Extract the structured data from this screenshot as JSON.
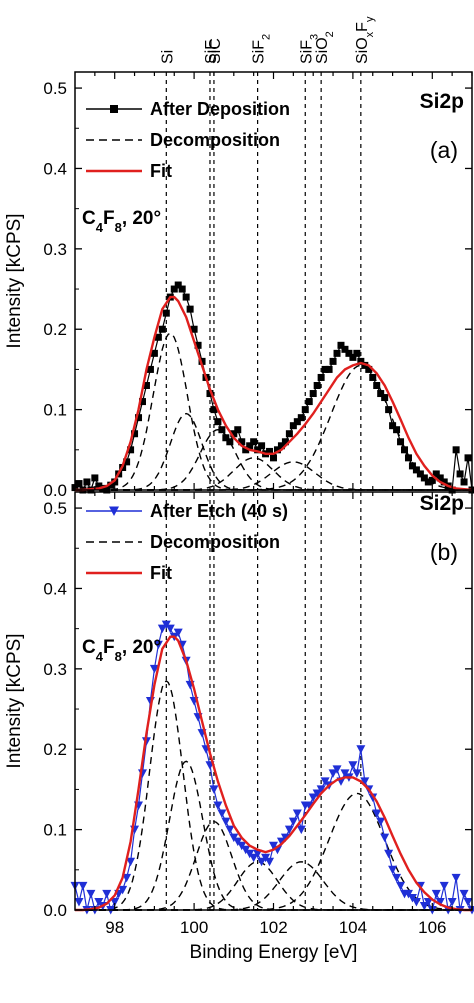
{
  "chart_data": [
    {
      "type": "line",
      "panel_label": "(a)",
      "region": "Si2p",
      "condition": {
        "base": "C",
        "s1": "4",
        "mid": "F",
        "s2": "8",
        "tail": ", 20°"
      },
      "xlabel": "",
      "ylabel": "Intensity [kCPS]",
      "xlim": [
        97,
        107
      ],
      "ylim": [
        0,
        0.52
      ],
      "yticks": [
        "0.0",
        "0.1",
        "0.2",
        "0.3",
        "0.4",
        "0.5"
      ],
      "legend": {
        "data": "After Deposition",
        "decomp": "Decomposition",
        "fit": "Fit"
      },
      "series": {
        "data": {
          "name": "After Deposition",
          "color": "#000000",
          "marker": "square",
          "x": [
            97.0,
            97.1,
            97.2,
            97.3,
            97.4,
            97.5,
            97.6,
            97.7,
            97.8,
            97.9,
            98.0,
            98.1,
            98.2,
            98.3,
            98.4,
            98.5,
            98.6,
            98.7,
            98.8,
            98.9,
            99.0,
            99.1,
            99.2,
            99.3,
            99.4,
            99.5,
            99.6,
            99.7,
            99.8,
            99.9,
            100.0,
            100.1,
            100.2,
            100.3,
            100.4,
            100.5,
            100.6,
            100.7,
            100.8,
            100.9,
            101.0,
            101.1,
            101.2,
            101.3,
            101.4,
            101.5,
            101.6,
            101.7,
            101.8,
            101.9,
            102.0,
            102.1,
            102.2,
            102.3,
            102.4,
            102.5,
            102.6,
            102.7,
            102.8,
            102.9,
            103.0,
            103.1,
            103.2,
            103.3,
            103.4,
            103.5,
            103.6,
            103.7,
            103.8,
            103.9,
            104.0,
            104.1,
            104.2,
            104.3,
            104.4,
            104.5,
            104.6,
            104.7,
            104.8,
            104.9,
            105.0,
            105.1,
            105.2,
            105.3,
            105.4,
            105.5,
            105.6,
            105.7,
            105.8,
            105.9,
            106.0,
            106.1,
            106.2,
            106.3,
            106.4,
            106.5,
            106.6,
            106.7,
            106.8,
            106.9,
            107.0
          ],
          "y": [
            0.003,
            0.008,
            0.0,
            0.01,
            0.0,
            0.015,
            0.005,
            0.002,
            0.0,
            0.006,
            0.01,
            0.02,
            0.028,
            0.035,
            0.05,
            0.07,
            0.09,
            0.11,
            0.13,
            0.15,
            0.17,
            0.19,
            0.2,
            0.22,
            0.24,
            0.25,
            0.255,
            0.25,
            0.24,
            0.225,
            0.2,
            0.18,
            0.16,
            0.14,
            0.12,
            0.1,
            0.085,
            0.075,
            0.065,
            0.06,
            0.07,
            0.075,
            0.06,
            0.05,
            0.055,
            0.06,
            0.05,
            0.055,
            0.045,
            0.048,
            0.04,
            0.05,
            0.055,
            0.06,
            0.07,
            0.08,
            0.085,
            0.09,
            0.1,
            0.11,
            0.12,
            0.13,
            0.14,
            0.15,
            0.15,
            0.16,
            0.17,
            0.18,
            0.175,
            0.17,
            0.165,
            0.17,
            0.16,
            0.155,
            0.15,
            0.14,
            0.13,
            0.12,
            0.115,
            0.1,
            0.08,
            0.075,
            0.06,
            0.05,
            0.04,
            0.03,
            0.025,
            0.02,
            0.015,
            0.01,
            0.012,
            0.02,
            0.015,
            0.01,
            0.005,
            0.0,
            0.05,
            0.02,
            0.01,
            0.04,
            0.0
          ]
        },
        "fit": {
          "name": "Fit",
          "color": "#e0201e",
          "x": [
            97.0,
            97.2,
            97.4,
            97.6,
            97.8,
            98.0,
            98.2,
            98.4,
            98.6,
            98.8,
            99.0,
            99.2,
            99.4,
            99.5,
            99.6,
            99.8,
            100.0,
            100.2,
            100.4,
            100.6,
            100.8,
            101.0,
            101.2,
            101.4,
            101.6,
            101.8,
            102.0,
            102.2,
            102.4,
            102.6,
            102.8,
            103.0,
            103.2,
            103.4,
            103.6,
            103.8,
            104.0,
            104.2,
            104.4,
            104.6,
            104.8,
            105.0,
            105.2,
            105.4,
            105.6,
            105.8,
            106.0,
            106.2,
            106.4,
            106.6,
            106.8,
            107.0
          ],
          "y": [
            0.0,
            0.0,
            0.001,
            0.002,
            0.005,
            0.012,
            0.03,
            0.06,
            0.1,
            0.15,
            0.19,
            0.225,
            0.24,
            0.24,
            0.235,
            0.215,
            0.185,
            0.155,
            0.125,
            0.1,
            0.08,
            0.065,
            0.055,
            0.05,
            0.048,
            0.045,
            0.045,
            0.05,
            0.06,
            0.07,
            0.082,
            0.095,
            0.11,
            0.125,
            0.14,
            0.15,
            0.155,
            0.158,
            0.155,
            0.145,
            0.13,
            0.11,
            0.088,
            0.065,
            0.045,
            0.03,
            0.018,
            0.01,
            0.005,
            0.002,
            0.001,
            0.0
          ]
        },
        "decomposition": [
          {
            "center": 99.4,
            "amp": 0.195,
            "sigma": 0.43
          },
          {
            "center": 99.8,
            "amp": 0.095,
            "sigma": 0.4
          },
          {
            "center": 100.6,
            "amp": 0.075,
            "sigma": 0.45
          },
          {
            "center": 101.5,
            "amp": 0.04,
            "sigma": 0.5
          },
          {
            "center": 102.5,
            "amp": 0.035,
            "sigma": 0.55
          },
          {
            "center": 104.2,
            "amp": 0.155,
            "sigma": 0.75
          }
        ]
      }
    },
    {
      "type": "line",
      "panel_label": "(b)",
      "region": "Si2p",
      "condition": {
        "base": "C",
        "s1": "4",
        "mid": "F",
        "s2": "8",
        "tail": ", 20°"
      },
      "xlabel": "Binding Energy [eV]",
      "ylabel": "Intensity [kCPS]",
      "xlim": [
        97,
        107
      ],
      "ylim": [
        0,
        0.52
      ],
      "yticks": [
        "0.0",
        "0.1",
        "0.2",
        "0.3",
        "0.4",
        "0.5"
      ],
      "xticks": [
        "98",
        "100",
        "102",
        "104",
        "106"
      ],
      "xtick_values": [
        98,
        100,
        102,
        104,
        106
      ],
      "legend": {
        "data": "After Etch (40 s)",
        "decomp": "Decomposition",
        "fit": "Fit"
      },
      "series": {
        "data": {
          "name": "After Etch (40 s)",
          "color": "#1f2fd6",
          "marker": "triangle-down",
          "x": [
            97.0,
            97.1,
            97.2,
            97.3,
            97.4,
            97.5,
            97.6,
            97.7,
            97.8,
            97.9,
            98.0,
            98.1,
            98.2,
            98.3,
            98.4,
            98.5,
            98.6,
            98.7,
            98.8,
            98.9,
            99.0,
            99.1,
            99.2,
            99.3,
            99.4,
            99.5,
            99.6,
            99.7,
            99.8,
            99.9,
            100.0,
            100.1,
            100.2,
            100.3,
            100.4,
            100.5,
            100.6,
            100.7,
            100.8,
            100.9,
            101.0,
            101.1,
            101.2,
            101.3,
            101.4,
            101.5,
            101.6,
            101.7,
            101.8,
            101.9,
            102.0,
            102.1,
            102.2,
            102.3,
            102.4,
            102.5,
            102.6,
            102.7,
            102.8,
            102.9,
            103.0,
            103.1,
            103.2,
            103.3,
            103.4,
            103.5,
            103.6,
            103.7,
            103.8,
            103.9,
            104.0,
            104.1,
            104.2,
            104.3,
            104.4,
            104.5,
            104.6,
            104.7,
            104.8,
            104.9,
            105.0,
            105.1,
            105.2,
            105.3,
            105.4,
            105.5,
            105.6,
            105.7,
            105.8,
            105.9,
            106.0,
            106.1,
            106.2,
            106.3,
            106.4,
            106.5,
            106.6,
            106.7,
            106.8,
            106.9,
            107.0
          ],
          "y": [
            0.03,
            0.01,
            0.03,
            0.0,
            0.02,
            0.0,
            0.01,
            0.005,
            0.02,
            0.0,
            0.01,
            0.02,
            0.025,
            0.04,
            0.06,
            0.1,
            0.13,
            0.17,
            0.21,
            0.26,
            0.3,
            0.33,
            0.35,
            0.355,
            0.35,
            0.34,
            0.345,
            0.33,
            0.31,
            0.28,
            0.26,
            0.24,
            0.22,
            0.2,
            0.18,
            0.15,
            0.13,
            0.12,
            0.11,
            0.1,
            0.09,
            0.085,
            0.08,
            0.075,
            0.07,
            0.065,
            0.07,
            0.06,
            0.065,
            0.06,
            0.08,
            0.075,
            0.085,
            0.09,
            0.1,
            0.11,
            0.12,
            0.1,
            0.13,
            0.13,
            0.14,
            0.145,
            0.15,
            0.16,
            0.155,
            0.17,
            0.175,
            0.16,
            0.17,
            0.165,
            0.18,
            0.17,
            0.2,
            0.16,
            0.15,
            0.14,
            0.12,
            0.11,
            0.09,
            0.07,
            0.05,
            0.04,
            0.03,
            0.02,
            0.02,
            0.015,
            0.01,
            0.03,
            0.005,
            0.01,
            0.0,
            0.02,
            0.01,
            0.03,
            0.0,
            0.01,
            0.04,
            0.0,
            0.02,
            0.01,
            0.0
          ]
        },
        "fit": {
          "name": "Fit",
          "color": "#e0201e",
          "x": [
            97.0,
            97.2,
            97.4,
            97.6,
            97.8,
            98.0,
            98.2,
            98.4,
            98.6,
            98.8,
            99.0,
            99.2,
            99.4,
            99.5,
            99.6,
            99.8,
            100.0,
            100.2,
            100.4,
            100.6,
            100.8,
            101.0,
            101.2,
            101.4,
            101.6,
            101.8,
            102.0,
            102.2,
            102.4,
            102.6,
            102.8,
            103.0,
            103.2,
            103.4,
            103.6,
            103.8,
            104.0,
            104.2,
            104.4,
            104.6,
            104.8,
            105.0,
            105.2,
            105.4,
            105.6,
            105.8,
            106.0,
            106.2,
            106.4,
            106.6,
            106.8,
            107.0
          ],
          "y": [
            0.0,
            0.0,
            0.001,
            0.003,
            0.008,
            0.018,
            0.04,
            0.085,
            0.15,
            0.22,
            0.28,
            0.325,
            0.34,
            0.34,
            0.335,
            0.31,
            0.275,
            0.235,
            0.195,
            0.16,
            0.13,
            0.105,
            0.09,
            0.08,
            0.075,
            0.072,
            0.075,
            0.082,
            0.092,
            0.105,
            0.118,
            0.132,
            0.145,
            0.155,
            0.162,
            0.165,
            0.165,
            0.16,
            0.15,
            0.135,
            0.115,
            0.092,
            0.07,
            0.05,
            0.034,
            0.022,
            0.013,
            0.007,
            0.003,
            0.001,
            0.0,
            0.0
          ]
        },
        "decomposition": [
          {
            "center": 99.3,
            "amp": 0.285,
            "sigma": 0.42
          },
          {
            "center": 99.8,
            "amp": 0.185,
            "sigma": 0.42
          },
          {
            "center": 100.5,
            "amp": 0.11,
            "sigma": 0.45
          },
          {
            "center": 101.6,
            "amp": 0.06,
            "sigma": 0.5
          },
          {
            "center": 102.7,
            "amp": 0.06,
            "sigma": 0.55
          },
          {
            "center": 104.1,
            "amp": 0.145,
            "sigma": 0.7
          }
        ]
      }
    }
  ],
  "reference_lines": [
    {
      "x": 99.3,
      "label": "Si"
    },
    {
      "x": 100.4,
      "label": "SiF"
    },
    {
      "x": 100.5,
      "label": "SiC"
    },
    {
      "x": 101.6,
      "label": "SiF",
      "sub": "2"
    },
    {
      "x": 102.8,
      "label": "SiF",
      "sub": "3"
    },
    {
      "x": 103.2,
      "label": "SiO",
      "sub": "2"
    },
    {
      "x": 104.2,
      "label": "SiO",
      "sub": "x",
      "mid": "F",
      "sub2": "y"
    }
  ]
}
